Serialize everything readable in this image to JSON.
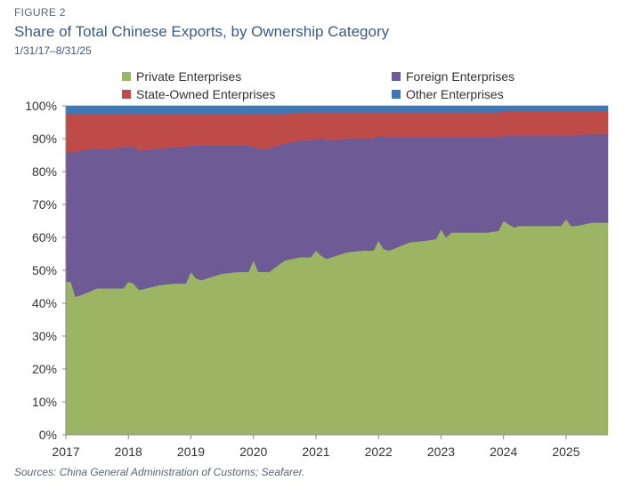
{
  "figure": {
    "label": "FIGURE 2",
    "title": "Share of Total Chinese Exports, by Ownership Category",
    "subtitle": "1/31/17–8/31/25",
    "source": "Sources: China General Administration of Customs; Seafarer."
  },
  "chart_data": {
    "type": "area",
    "stacked": true,
    "x": [
      2017.08,
      2017.15,
      2017.25,
      2017.5,
      2017.75,
      2017.92,
      2018.0,
      2018.08,
      2018.17,
      2018.5,
      2018.75,
      2018.92,
      2019.0,
      2019.08,
      2019.17,
      2019.5,
      2019.75,
      2019.92,
      2020.0,
      2020.08,
      2020.25,
      2020.5,
      2020.75,
      2020.92,
      2021.0,
      2021.08,
      2021.17,
      2021.5,
      2021.75,
      2021.92,
      2022.0,
      2022.08,
      2022.17,
      2022.5,
      2022.75,
      2022.92,
      2023.0,
      2023.08,
      2023.17,
      2023.5,
      2023.75,
      2023.92,
      2024.0,
      2024.08,
      2024.17,
      2024.25,
      2024.5,
      2024.75,
      2024.92,
      2025.0,
      2025.08,
      2025.17,
      2025.42,
      2025.67
    ],
    "series": [
      {
        "name": "Private Enterprises",
        "color": "#9bb565",
        "values": [
          46.5,
          42,
          42.5,
          44.5,
          44.5,
          44.5,
          46.5,
          46,
          44,
          45.5,
          46,
          46,
          49.5,
          47.5,
          47,
          49,
          49.5,
          49.5,
          53,
          49.5,
          49.5,
          53,
          54,
          54,
          56,
          54.5,
          53.5,
          55.5,
          56,
          56,
          59,
          56.5,
          56,
          58.5,
          59,
          59.5,
          62.5,
          60,
          61.5,
          61.5,
          61.5,
          62,
          65,
          64,
          63,
          63.5,
          63.5,
          63.5,
          63.5,
          65.5,
          63.5,
          63.5,
          64.5,
          64.5
        ]
      },
      {
        "name": "Foreign Enterprises",
        "color": "#6e5a94",
        "values": [
          39.5,
          44,
          44,
          42.5,
          42.5,
          43,
          41,
          41.5,
          42.5,
          41.5,
          41.5,
          41.5,
          38.5,
          40.5,
          41,
          39,
          38.5,
          38.5,
          34.5,
          37.5,
          37.5,
          35.5,
          35.5,
          35.5,
          34,
          35.5,
          36,
          34.5,
          34,
          34,
          32,
          34,
          34.5,
          32,
          31.5,
          31,
          28,
          30.5,
          29,
          29,
          29,
          28.5,
          26,
          27,
          28,
          27.5,
          27.5,
          27.5,
          27.5,
          25.5,
          27.5,
          27.5,
          27,
          27
        ]
      },
      {
        "name": "State-Owned Enterprises",
        "color": "#bf4b49",
        "values": [
          11.5,
          11.5,
          11,
          10.5,
          10.5,
          10,
          10,
          10,
          11,
          10.5,
          10,
          10,
          9.5,
          9.5,
          9.5,
          9.5,
          9.5,
          9.5,
          10,
          10.5,
          10.5,
          9,
          8.5,
          8.5,
          8,
          8,
          8.5,
          8,
          8,
          8,
          7,
          7.5,
          7.5,
          7.5,
          7.5,
          7.5,
          7.5,
          7.5,
          7.5,
          7.5,
          7.5,
          7.5,
          7.5,
          7.5,
          7.5,
          7.5,
          7.5,
          7.5,
          7.5,
          7.5,
          7.5,
          7.5,
          7,
          7
        ]
      },
      {
        "name": "Other Enterprises",
        "color": "#3e78b5",
        "values": [
          2.5,
          2.5,
          2.5,
          2.5,
          2.5,
          2.5,
          2.5,
          2.5,
          2.5,
          2.5,
          2.5,
          2.5,
          2.5,
          2.5,
          2.5,
          2.5,
          2.5,
          2.5,
          2.5,
          2.5,
          2.5,
          2.5,
          2,
          2,
          2,
          2,
          2,
          2,
          2,
          2,
          2,
          2,
          2,
          2,
          2,
          2,
          2,
          2,
          2,
          2,
          2,
          2,
          1.5,
          1.5,
          1.5,
          1.5,
          1.5,
          1.5,
          1.5,
          1.5,
          1.5,
          1.5,
          1.5,
          1.5
        ]
      }
    ],
    "xlim": [
      2017.0,
      2025.67
    ],
    "ylim": [
      0,
      100
    ],
    "x_ticks": [
      2017,
      2018,
      2019,
      2020,
      2021,
      2022,
      2023,
      2024,
      2025
    ],
    "x_tick_labels": [
      "2017",
      "2018",
      "2019",
      "2020",
      "2021",
      "2022",
      "2023",
      "2024",
      "2025"
    ],
    "y_ticks": [
      0,
      10,
      20,
      30,
      40,
      50,
      60,
      70,
      80,
      90,
      100
    ],
    "y_tick_labels": [
      "0%",
      "10%",
      "20%",
      "30%",
      "40%",
      "50%",
      "60%",
      "70%",
      "80%",
      "90%",
      "100%"
    ],
    "grid": false,
    "legend_position": "top"
  }
}
